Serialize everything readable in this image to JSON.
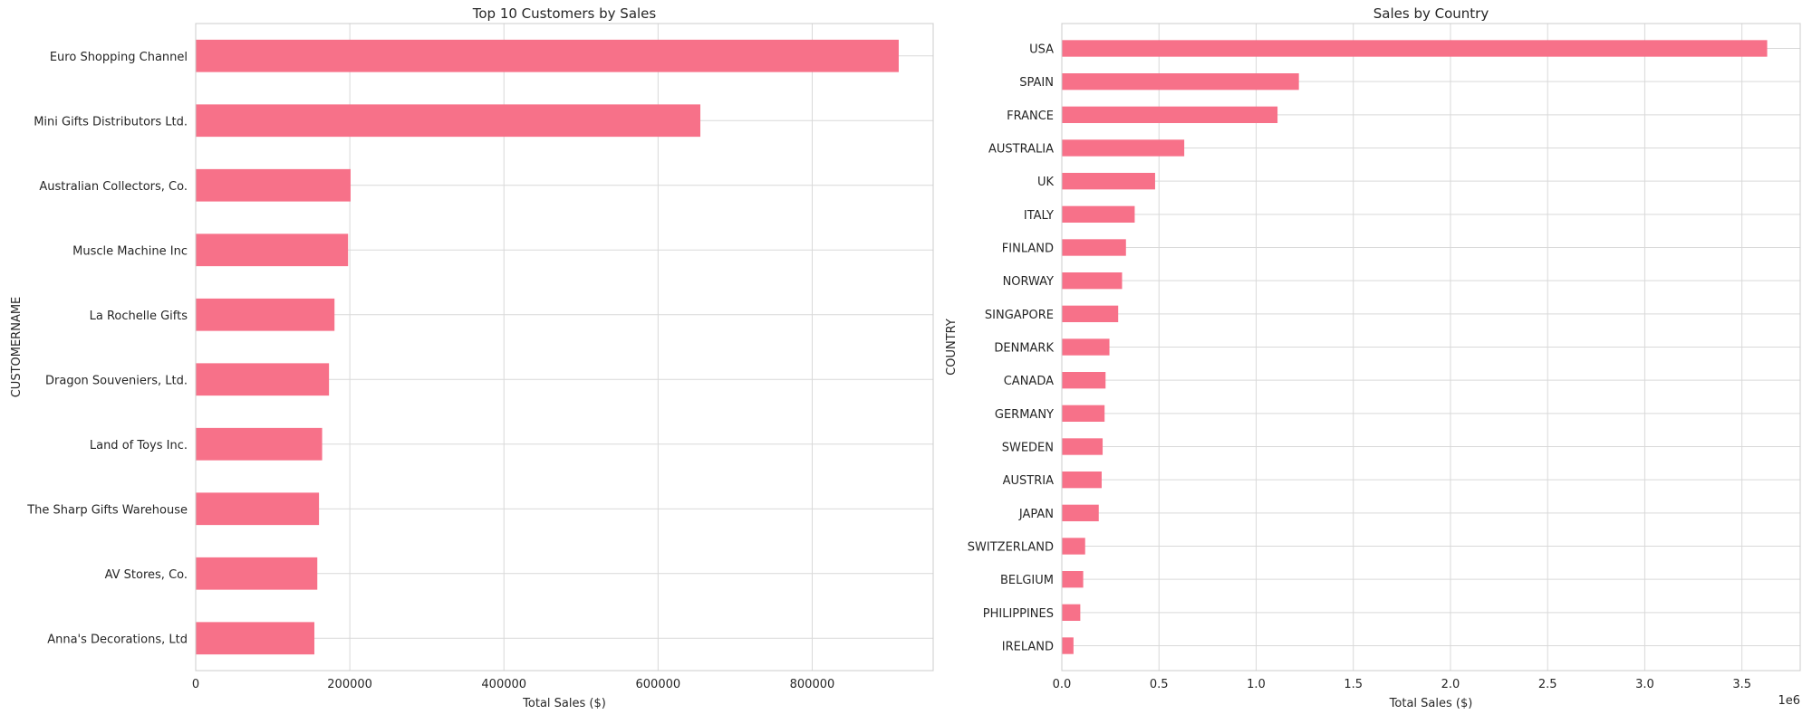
{
  "chart_data": [
    {
      "type": "bar",
      "orientation": "horizontal",
      "title": "Top 10 Customers by Sales",
      "xlabel": "Total Sales ($)",
      "ylabel": "CUSTOMERNAME",
      "xlim": [
        0,
        957000
      ],
      "xticks": [
        0,
        200000,
        400000,
        600000,
        800000
      ],
      "xtick_labels": [
        "0",
        "200000",
        "400000",
        "600000",
        "800000"
      ],
      "grid": true,
      "bar_color": "#f77189",
      "categories": [
        "Euro Shopping Channel",
        "Mini Gifts Distributors Ltd.",
        "Australian Collectors, Co.",
        "Muscle Machine Inc",
        "La Rochelle Gifts",
        "Dragon Souveniers, Ltd.",
        "Land of Toys Inc.",
        "The Sharp Gifts Warehouse",
        "AV Stores, Co.",
        "Anna's Decorations, Ltd"
      ],
      "values": [
        912294,
        654858,
        200995,
        197737,
        180124,
        172990,
        164069,
        160010,
        157807,
        153996
      ]
    },
    {
      "type": "bar",
      "orientation": "horizontal",
      "title": "Sales by Country",
      "xlabel": "Total Sales ($)",
      "ylabel": "COUNTRY",
      "xlim": [
        0,
        3.8
      ],
      "xticks": [
        0,
        0.5,
        1.0,
        1.5,
        2.0,
        2.5,
        3.0,
        3.5
      ],
      "xtick_labels": [
        "0.0",
        "0.5",
        "1.0",
        "1.5",
        "2.0",
        "2.5",
        "3.0",
        "3.5"
      ],
      "axis_offset_label": "1e6",
      "grid": true,
      "bar_color": "#f77189",
      "categories": [
        "USA",
        "SPAIN",
        "FRANCE",
        "AUSTRALIA",
        "UK",
        "ITALY",
        "FINLAND",
        "NORWAY",
        "SINGAPORE",
        "DENMARK",
        "CANADA",
        "GERMANY",
        "SWEDEN",
        "AUSTRIA",
        "JAPAN",
        "SWITZERLAND",
        "BELGIUM",
        "PHILIPPINES",
        "IRELAND"
      ],
      "values": [
        3.63,
        1.22,
        1.11,
        0.63,
        0.48,
        0.375,
        0.33,
        0.31,
        0.29,
        0.245,
        0.225,
        0.22,
        0.21,
        0.205,
        0.19,
        0.12,
        0.11,
        0.095,
        0.06
      ]
    }
  ]
}
